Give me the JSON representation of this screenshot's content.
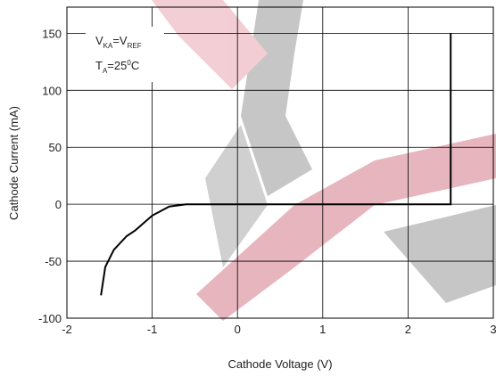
{
  "chart_data": {
    "type": "line",
    "x_label": "Cathode Voltage (V)",
    "y_label": "Cathode Current (mA)",
    "x": [
      -1.6,
      -1.55,
      -1.45,
      -1.3,
      -1.2,
      -1.0,
      -0.8,
      -0.6,
      -0.4,
      0,
      1,
      2,
      2.5,
      2.5
    ],
    "values": [
      -80,
      -55,
      -40,
      -28,
      -23,
      -10,
      -2,
      0,
      0,
      0,
      0,
      0,
      0,
      150
    ],
    "color": "#000000",
    "xlim": [
      -2,
      3
    ],
    "ylim": [
      -100,
      173
    ],
    "xticks": [
      -2,
      -1,
      0,
      1,
      2,
      3
    ],
    "yticks": [
      -100,
      -50,
      0,
      50,
      100,
      150
    ],
    "grid": true,
    "annotation": [
      {
        "parts": [
          {
            "t": "V"
          },
          {
            "t": "KA",
            "shift": "sub"
          },
          {
            "t": "=V"
          },
          {
            "t": "REF",
            "shift": "sub"
          }
        ]
      },
      {
        "parts": [
          {
            "t": "T"
          },
          {
            "t": "A",
            "shift": "sub"
          },
          {
            "t": "=25"
          },
          {
            "t": "0",
            "shift": "super"
          },
          {
            "t": "C"
          }
        ]
      }
    ]
  }
}
